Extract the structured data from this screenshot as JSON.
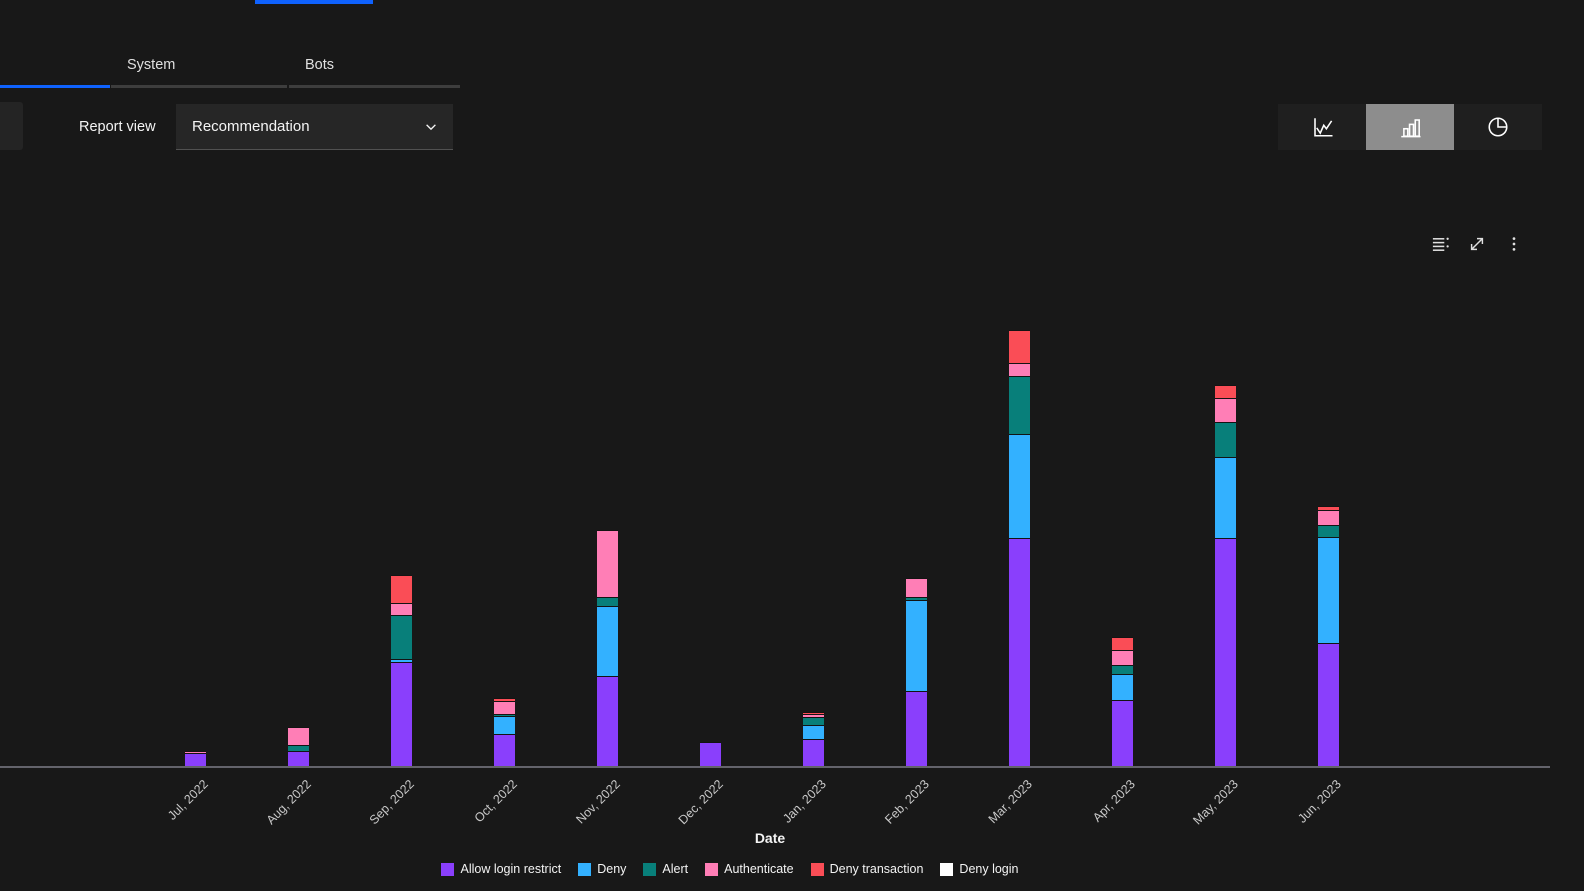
{
  "tabs": {
    "items": [
      {
        "label": "System",
        "selected": false
      },
      {
        "label": "Bots",
        "selected": false
      }
    ],
    "note_hidden_selected_tab": "a selected tab is clipped off-screen left (blue underline visible)"
  },
  "controls": {
    "report_view_label": "Report view",
    "report_view_value": "Recommendation",
    "chart_type_selected": "bar-chart"
  },
  "icons": {
    "chart_toggle": [
      "line-chart-icon",
      "bar-chart-icon",
      "pie-chart-icon"
    ],
    "chart_toolbar": [
      "legend-list-icon",
      "expand-icon",
      "overflow-menu-icon"
    ],
    "dropdown": "chevron-down-icon"
  },
  "colors": {
    "accent_blue": "#0f62fe",
    "selected_toggle_bg": "#8d8d8d",
    "background": "#181818",
    "axis_line": "#63636b"
  },
  "chart_data": {
    "type": "bar",
    "stacked": true,
    "orientation": "vertical",
    "title": "",
    "xlabel": "Date",
    "ylabel": "",
    "y_axis_visible": false,
    "legend_position": "bottom",
    "grid": false,
    "note": "no y-axis ticks visible; values are relative estimates from bar pixel heights",
    "categories": [
      "Jul, 2022",
      "Aug, 2022",
      "Sep, 2022",
      "Oct, 2022",
      "Nov, 2022",
      "Dec, 2022",
      "Jan, 2023",
      "Feb, 2023",
      "Mar, 2023",
      "Apr, 2023",
      "May, 2023",
      "Jun, 2023"
    ],
    "series": [
      {
        "name": "Allow login restrict",
        "color": "#8a3ffc",
        "values": [
          13,
          15,
          104,
          32,
          90,
          24,
          27,
          75,
          228,
          66,
          228,
          123
        ]
      },
      {
        "name": "Deny",
        "color": "#33b1ff",
        "values": [
          0,
          0,
          3,
          18,
          70,
          0,
          14,
          91,
          104,
          26,
          81,
          106
        ]
      },
      {
        "name": "Alert",
        "color": "#087f7a",
        "values": [
          0,
          6,
          44,
          2,
          9,
          0,
          8,
          3,
          58,
          9,
          35,
          12
        ]
      },
      {
        "name": "Authenticate",
        "color": "#ff7eb6",
        "values": [
          2,
          18,
          12,
          13,
          67,
          0,
          3,
          19,
          13,
          15,
          24,
          15
        ]
      },
      {
        "name": "Deny transaction",
        "color": "#fa4d56",
        "values": [
          0,
          0,
          28,
          3,
          0,
          0,
          2,
          0,
          33,
          13,
          13,
          4
        ]
      },
      {
        "name": "Deny login",
        "color": "#ffffff",
        "values": [
          0,
          0,
          0,
          0,
          0,
          0,
          0,
          0,
          0,
          0,
          0,
          0
        ]
      }
    ]
  }
}
